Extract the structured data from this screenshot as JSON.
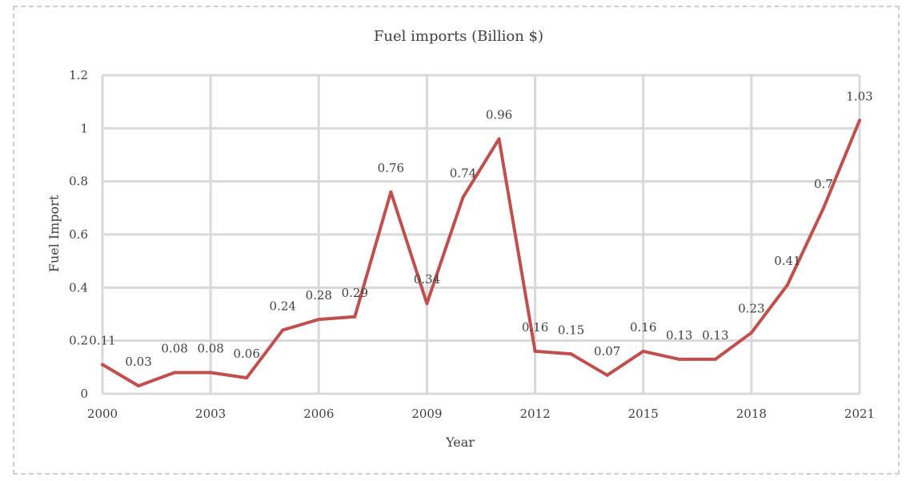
{
  "chart_data": {
    "type": "line",
    "title": "Fuel imports (Billion $)",
    "xlabel": "Year",
    "ylabel": "Fuel Import",
    "x": [
      2000,
      2001,
      2002,
      2003,
      2004,
      2005,
      2006,
      2007,
      2008,
      2009,
      2010,
      2011,
      2012,
      2013,
      2014,
      2015,
      2016,
      2017,
      2018,
      2019,
      2020,
      2021
    ],
    "series": [
      {
        "values": [
          0.11,
          0.03,
          0.08,
          0.08,
          0.06,
          0.24,
          0.28,
          0.29,
          0.76,
          0.34,
          0.74,
          0.96,
          0.16,
          0.15,
          0.07,
          0.16,
          0.13,
          0.13,
          0.23,
          0.41,
          0.7,
          1.03
        ]
      }
    ],
    "data_labels": [
      "0.11",
      "0.03",
      "0.08",
      "0.08",
      "0.06",
      "0.24",
      "0.28",
      "0.29",
      "0.76",
      "0.34",
      "0.74",
      "0.96",
      "0.16",
      "0.15",
      "0.07",
      "0.16",
      "0.13",
      "0.13",
      "0.23",
      "0.41",
      "0.7",
      "1.03"
    ],
    "x_tick_labels": [
      "2000",
      "2003",
      "2006",
      "2009",
      "2012",
      "2015",
      "2018",
      "2021"
    ],
    "y_tick_labels": [
      "0",
      "0.2",
      "0.4",
      "0.6",
      "0.8",
      "1",
      "1.2"
    ],
    "y_ticks": [
      0,
      0.2,
      0.4,
      0.6,
      0.8,
      1,
      1.2
    ],
    "x_ticks": [
      2000,
      2003,
      2006,
      2009,
      2012,
      2015,
      2018,
      2021
    ],
    "xlim": [
      2000,
      2021
    ],
    "ylim": [
      0,
      1.2
    ],
    "grid": true,
    "legend": "none",
    "colors": {
      "series": "#c0504d",
      "grid": "#d9d9d9",
      "text": "#404040"
    }
  }
}
